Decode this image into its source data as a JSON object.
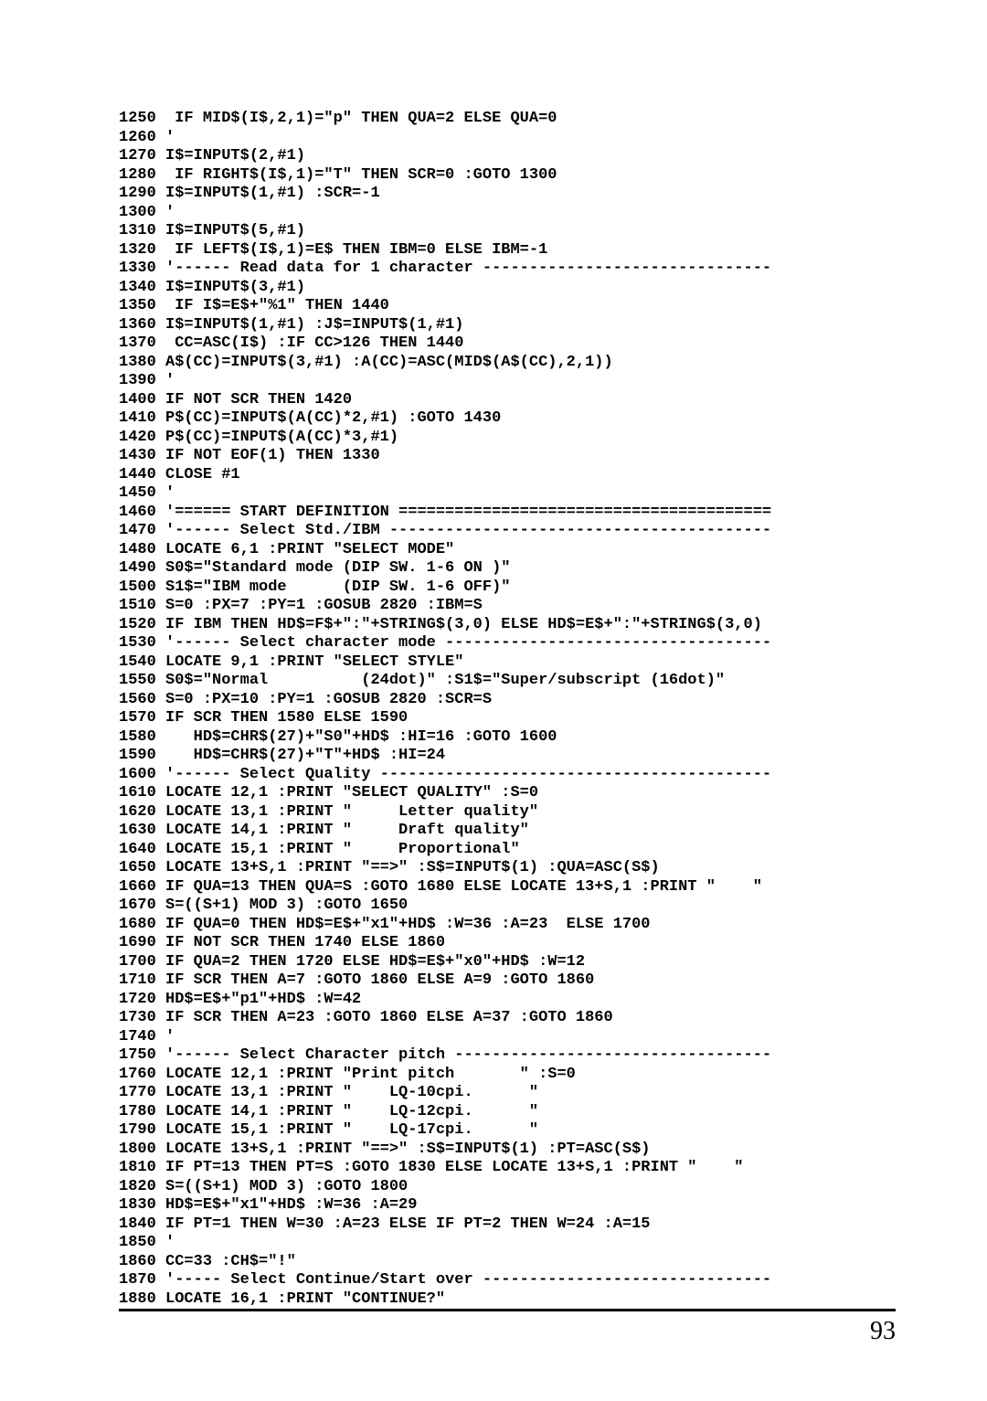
{
  "page_number": "93",
  "code_lines": [
    "1250  IF MID$(I$,2,1)=\"p\" THEN QUA=2 ELSE QUA=0",
    "1260 '",
    "1270 I$=INPUT$(2,#1)",
    "1280  IF RIGHT$(I$,1)=\"T\" THEN SCR=0 :GOTO 1300",
    "1290 I$=INPUT$(1,#1) :SCR=-1",
    "1300 '",
    "1310 I$=INPUT$(5,#1)",
    "1320  IF LEFT$(I$,1)=E$ THEN IBM=0 ELSE IBM=-1",
    "1330 '------ Read data for 1 character -------------------------------",
    "1340 I$=INPUT$(3,#1)",
    "1350  IF I$=E$+\"%1\" THEN 1440",
    "1360 I$=INPUT$(1,#1) :J$=INPUT$(1,#1)",
    "1370  CC=ASC(I$) :IF CC>126 THEN 1440",
    "1380 A$(CC)=INPUT$(3,#1) :A(CC)=ASC(MID$(A$(CC),2,1))",
    "1390 '",
    "1400 IF NOT SCR THEN 1420",
    "1410 P$(CC)=INPUT$(A(CC)*2,#1) :GOTO 1430",
    "1420 P$(CC)=INPUT$(A(CC)*3,#1)",
    "1430 IF NOT EOF(1) THEN 1330",
    "1440 CLOSE #1",
    "1450 '",
    "1460 '====== START DEFINITION ========================================",
    "1470 '------ Select Std./IBM -----------------------------------------",
    "1480 LOCATE 6,1 :PRINT \"SELECT MODE\"",
    "1490 S0$=\"Standard mode (DIP SW. 1-6 ON )\"",
    "1500 S1$=\"IBM mode      (DIP SW. 1-6 OFF)\"",
    "1510 S=0 :PX=7 :PY=1 :GOSUB 2820 :IBM=S",
    "1520 IF IBM THEN HD$=F$+\":\"+STRING$(3,0) ELSE HD$=E$+\":\"+STRING$(3,0)",
    "1530 '------ Select character mode -----------------------------------",
    "1540 LOCATE 9,1 :PRINT \"SELECT STYLE\"",
    "1550 S0$=\"Normal          (24dot)\" :S1$=\"Super/subscript (16dot)\"",
    "1560 S=0 :PX=10 :PY=1 :GOSUB 2820 :SCR=S",
    "1570 IF SCR THEN 1580 ELSE 1590",
    "1580    HD$=CHR$(27)+\"S0\"+HD$ :HI=16 :GOTO 1600",
    "1590    HD$=CHR$(27)+\"T\"+HD$ :HI=24",
    "1600 '------ Select Quality ------------------------------------------",
    "1610 LOCATE 12,1 :PRINT \"SELECT QUALITY\" :S=0",
    "1620 LOCATE 13,1 :PRINT \"     Letter quality\"",
    "1630 LOCATE 14,1 :PRINT \"     Draft quality\"",
    "1640 LOCATE 15,1 :PRINT \"     Proportional\"",
    "1650 LOCATE 13+S,1 :PRINT \"==>\" :S$=INPUT$(1) :QUA=ASC(S$)",
    "1660 IF QUA=13 THEN QUA=S :GOTO 1680 ELSE LOCATE 13+S,1 :PRINT \"    \"",
    "1670 S=((S+1) MOD 3) :GOTO 1650",
    "1680 IF QUA=0 THEN HD$=E$+\"x1\"+HD$ :W=36 :A=23  ELSE 1700",
    "1690 IF NOT SCR THEN 1740 ELSE 1860",
    "1700 IF QUA=2 THEN 1720 ELSE HD$=E$+\"x0\"+HD$ :W=12",
    "1710 IF SCR THEN A=7 :GOTO 1860 ELSE A=9 :GOTO 1860",
    "1720 HD$=E$+\"p1\"+HD$ :W=42",
    "1730 IF SCR THEN A=23 :GOTO 1860 ELSE A=37 :GOTO 1860",
    "1740 '",
    "1750 '------ Select Character pitch ----------------------------------",
    "1760 LOCATE 12,1 :PRINT \"Print pitch       \" :S=0",
    "1770 LOCATE 13,1 :PRINT \"    LQ-10cpi.      \"",
    "1780 LOCATE 14,1 :PRINT \"    LQ-12cpi.      \"",
    "1790 LOCATE 15,1 :PRINT \"    LQ-17cpi.      \"",
    "1800 LOCATE 13+S,1 :PRINT \"==>\" :S$=INPUT$(1) :PT=ASC(S$)",
    "1810 IF PT=13 THEN PT=S :GOTO 1830 ELSE LOCATE 13+S,1 :PRINT \"    \"",
    "1820 S=((S+1) MOD 3) :GOTO 1800",
    "1830 HD$=E$+\"x1\"+HD$ :W=36 :A=29",
    "1840 IF PT=1 THEN W=30 :A=23 ELSE IF PT=2 THEN W=24 :A=15",
    "1850 '",
    "1860 CC=33 :CH$=\"!\"",
    "1870 '----- Select Continue/Start over -------------------------------",
    "1880 LOCATE 16,1 :PRINT \"CONTINUE?\""
  ]
}
